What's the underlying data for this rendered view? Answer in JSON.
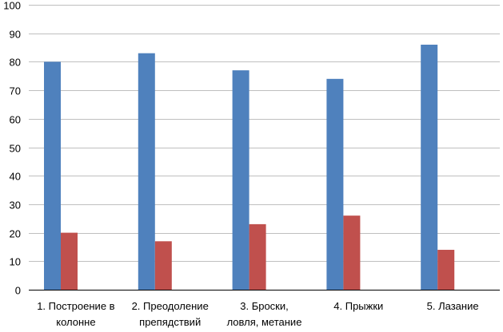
{
  "chart_data": {
    "type": "bar",
    "categories": [
      [
        "1. Построение в",
        "колонне"
      ],
      [
        "2. Преодоление",
        "препядствий"
      ],
      [
        "3. Броски,",
        "ловля, метание"
      ],
      [
        "4. Прыжки"
      ],
      [
        "5. Лазание"
      ]
    ],
    "series": [
      {
        "values": [
          80,
          83,
          77,
          74,
          86
        ],
        "color": "#4f81bd"
      },
      {
        "values": [
          20,
          17,
          23,
          26,
          14
        ],
        "color": "#c0504d"
      }
    ],
    "ylim": [
      0,
      100
    ],
    "yticks": [
      0,
      10,
      20,
      30,
      40,
      50,
      60,
      70,
      80,
      90,
      100
    ],
    "grid": true,
    "legend": "none"
  }
}
